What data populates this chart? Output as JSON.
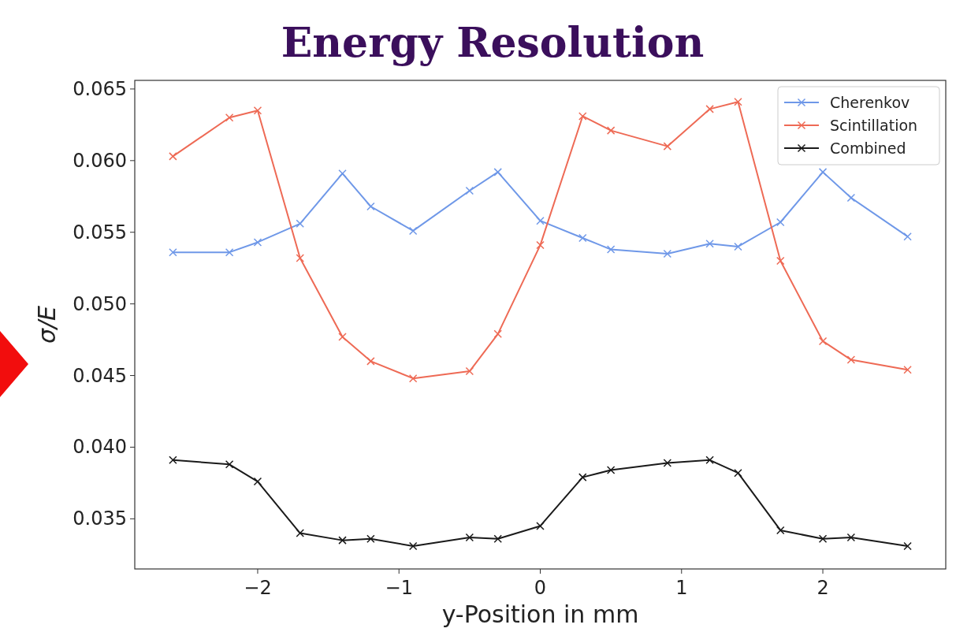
{
  "chart_data": {
    "type": "line",
    "title": "Energy Resolution",
    "xlabel": "y-Position in mm",
    "ylabel": "σ/E",
    "x": [
      -2.6,
      -2.2,
      -2.0,
      -1.7,
      -1.4,
      -1.2,
      -0.9,
      -0.5,
      -0.3,
      0,
      0.3,
      0.5,
      0.9,
      1.2,
      1.4,
      1.7,
      2.0,
      2.2,
      2.6
    ],
    "series": [
      {
        "name": "Cherenkov",
        "color": "#6f98e8",
        "values": [
          0.0536,
          0.0536,
          0.0543,
          0.0556,
          0.0591,
          0.0568,
          0.0551,
          0.0579,
          0.0592,
          0.0558,
          0.0546,
          0.0538,
          0.0535,
          0.0542,
          0.054,
          0.0557,
          0.0592,
          0.0574,
          0.0547
        ]
      },
      {
        "name": "Scintillation",
        "color": "#ee6a55",
        "values": [
          0.0603,
          0.063,
          0.0635,
          0.0532,
          0.0477,
          0.046,
          0.0448,
          0.0453,
          0.0479,
          0.0541,
          0.0631,
          0.0621,
          0.061,
          0.0636,
          0.0641,
          0.053,
          0.0474,
          0.0461,
          0.0454
        ]
      },
      {
        "name": "Combined",
        "color": "#1a1a1a",
        "values": [
          0.0391,
          0.0388,
          0.0376,
          0.034,
          0.0335,
          0.0336,
          0.0331,
          0.0337,
          0.0336,
          0.0345,
          0.0379,
          0.0384,
          0.0389,
          0.0391,
          0.0382,
          0.0342,
          0.0336,
          0.0337,
          0.0331
        ]
      }
    ],
    "xlim": [
      -2.87,
      2.87
    ],
    "xticks": [
      {
        "value": -2,
        "label": "−2"
      },
      {
        "value": -1,
        "label": "−1"
      },
      0,
      1,
      2
    ],
    "ylim": [
      0.0315,
      0.0656
    ],
    "yticks": [
      {
        "value": 0.035,
        "label": "0.035"
      },
      {
        "value": 0.04,
        "label": "0.040"
      },
      {
        "value": 0.045,
        "label": "0.045"
      },
      {
        "value": 0.05,
        "label": "0.050"
      },
      {
        "value": 0.055,
        "label": "0.055"
      },
      {
        "value": 0.06,
        "label": "0.060"
      },
      {
        "value": 0.065,
        "label": "0.065"
      }
    ],
    "grid": false,
    "legend": "top right",
    "marker": "cross",
    "line_style": "solid"
  }
}
